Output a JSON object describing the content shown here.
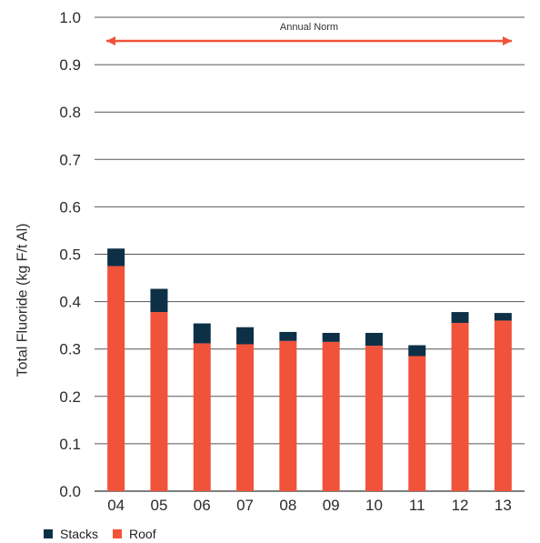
{
  "colors": {
    "stacks": "#0d3047",
    "roof": "#f0533a",
    "norm": "#f0533a",
    "grid": "#555555",
    "text": "#2b2b2b"
  },
  "chart_data": {
    "type": "bar",
    "stacked": true,
    "categories": [
      "04",
      "05",
      "06",
      "07",
      "08",
      "09",
      "10",
      "11",
      "12",
      "13"
    ],
    "series": [
      {
        "name": "Roof",
        "values": [
          0.475,
          0.378,
          0.312,
          0.31,
          0.317,
          0.315,
          0.307,
          0.285,
          0.355,
          0.36
        ]
      },
      {
        "name": "Stacks",
        "values": [
          0.037,
          0.049,
          0.042,
          0.036,
          0.019,
          0.019,
          0.027,
          0.023,
          0.023,
          0.016
        ]
      }
    ],
    "ylabel": "Total Fluoride (kg F/t Al)",
    "xlabel": "",
    "ylim": [
      0,
      1.0
    ],
    "yticks": [
      "0.0",
      "0.1",
      "0.2",
      "0.3",
      "0.4",
      "0.5",
      "0.6",
      "0.7",
      "0.8",
      "0.9",
      "1.0"
    ],
    "grid": true,
    "legend": {
      "position": "bottom-left",
      "entries": [
        "Stacks",
        "Roof"
      ]
    },
    "annotation": {
      "label": "Annual Norm",
      "value": 0.95
    }
  }
}
